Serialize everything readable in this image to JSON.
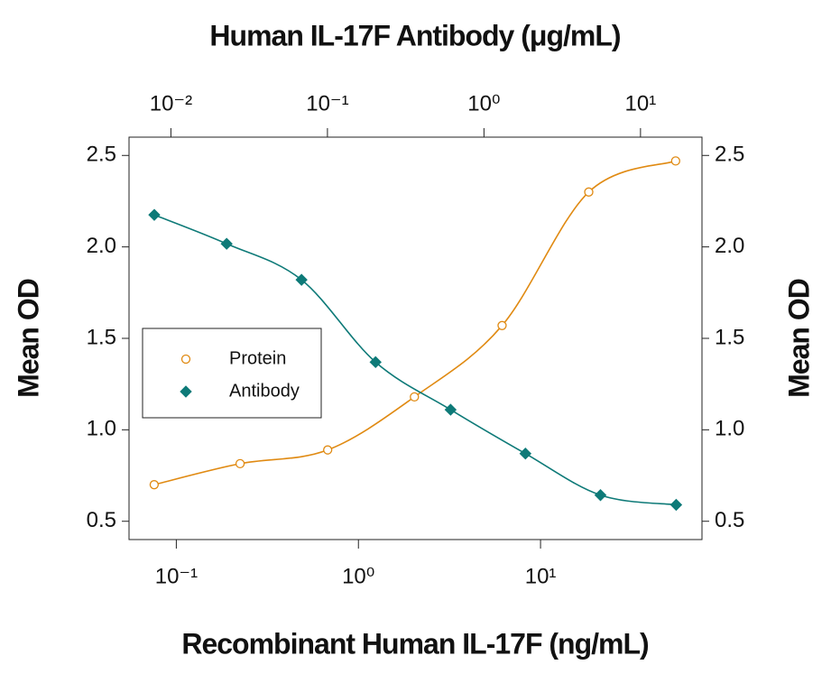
{
  "chart_data": {
    "type": "line",
    "title": "Human IL-17F Antibody (μg/mL)",
    "xlabel": "Recombinant Human IL-17F (ng/mL)",
    "ylabel": "Mean OD",
    "y2label": "Mean OD",
    "xscale": "log",
    "x2scale": "log",
    "xlim": [
      0.055,
      77
    ],
    "x2lim": [
      0.0054,
      24.7
    ],
    "ylim": [
      0.4,
      2.6
    ],
    "y2lim": [
      0.4,
      2.6
    ],
    "xticks": [
      {
        "value": 0.1,
        "label": "10⁻¹"
      },
      {
        "value": 1,
        "label": "10⁰"
      },
      {
        "value": 10,
        "label": "10¹"
      }
    ],
    "x2ticks": [
      {
        "value": 0.01,
        "label": "10⁻²"
      },
      {
        "value": 0.1,
        "label": "10⁻¹"
      },
      {
        "value": 1,
        "label": "10⁰"
      },
      {
        "value": 10,
        "label": "10¹"
      }
    ],
    "yticks": [
      0.5,
      {
        "value": 1,
        "label": "1.0"
      },
      1.5,
      {
        "value": 2,
        "label": "2.0"
      },
      2.5
    ],
    "y2ticks": [
      0.5,
      {
        "value": 1,
        "label": "1.0"
      },
      1.5,
      {
        "value": 2,
        "label": "2.0"
      },
      2.5
    ],
    "legend": "left",
    "series": [
      {
        "name": "Protein",
        "color": "#e08a12",
        "marker": "circle",
        "axis": "x",
        "x": [
          0.0756,
          0.224,
          0.678,
          2.03,
          6.15,
          18.4,
          55.2
        ],
        "values": [
          0.7,
          0.815,
          0.89,
          1.18,
          1.57,
          2.3,
          2.47
        ]
      },
      {
        "name": "Antibody",
        "color": "#0e7a78",
        "marker": "diamond",
        "axis": "x2",
        "x": [
          0.00783,
          0.0227,
          0.0683,
          0.203,
          0.612,
          1.84,
          5.55,
          16.9
        ],
        "values": [
          2.175,
          2.017,
          1.82,
          1.37,
          1.11,
          0.87,
          0.643,
          0.59
        ]
      }
    ]
  }
}
